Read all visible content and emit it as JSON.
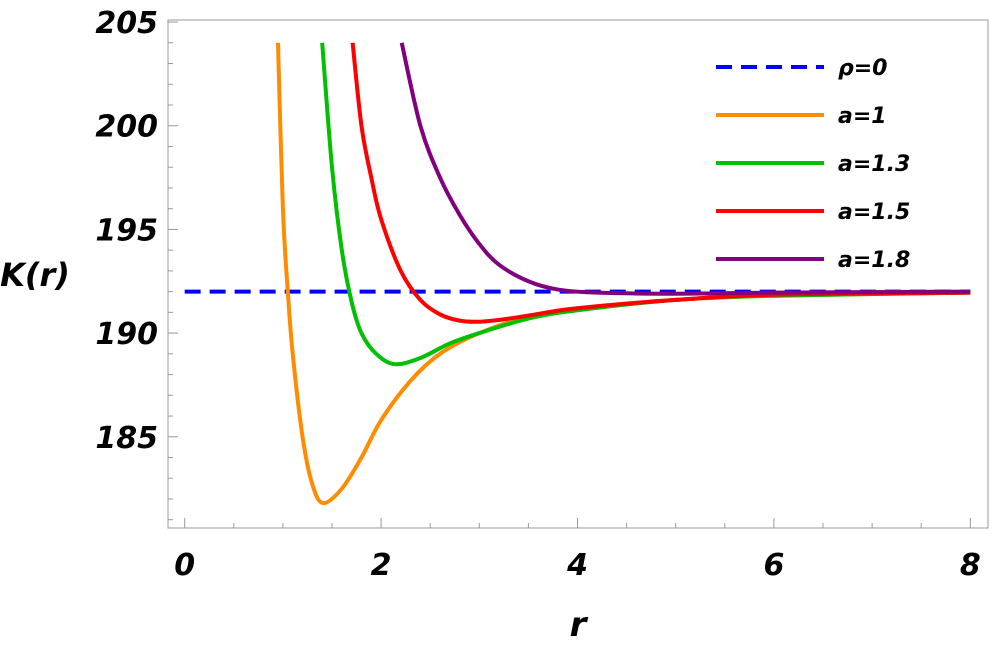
{
  "chart_data": {
    "type": "line",
    "title": "",
    "xlabel": "r",
    "ylabel": "K(r)",
    "xlim": [
      -0.17,
      8.18
    ],
    "ylim": [
      180.6,
      205.1
    ],
    "xticks": [
      0,
      2,
      4,
      6,
      8
    ],
    "yticks": [
      185,
      190,
      195,
      200,
      205
    ],
    "grid": false,
    "legend_position": "top-right",
    "series": [
      {
        "name": "ρ=0",
        "color": "#0000ff",
        "dashed": true,
        "points": [
          [
            0,
            192
          ],
          [
            8,
            192
          ]
        ]
      },
      {
        "name": "a=1",
        "color": "#ff8c00",
        "dashed": false,
        "points": [
          [
            0.95,
            204
          ],
          [
            1.0,
            196
          ],
          [
            1.05,
            192
          ],
          [
            1.1,
            189
          ],
          [
            1.2,
            185
          ],
          [
            1.3,
            182.7
          ],
          [
            1.41,
            181.8
          ],
          [
            1.6,
            182.5
          ],
          [
            1.8,
            184
          ],
          [
            2.0,
            185.8
          ],
          [
            2.3,
            187.7
          ],
          [
            2.6,
            189
          ],
          [
            3.0,
            190
          ],
          [
            3.5,
            190.8
          ],
          [
            4,
            191.2
          ],
          [
            5,
            191.6
          ],
          [
            6,
            191.8
          ],
          [
            8,
            191.95
          ]
        ]
      },
      {
        "name": "a=1.3",
        "color": "#00c000",
        "dashed": false,
        "points": [
          [
            1.4,
            204
          ],
          [
            1.5,
            198
          ],
          [
            1.6,
            194
          ],
          [
            1.7,
            191.5
          ],
          [
            1.8,
            190
          ],
          [
            1.95,
            189
          ],
          [
            2.14,
            188.5
          ],
          [
            2.4,
            188.8
          ],
          [
            2.7,
            189.5
          ],
          [
            3,
            190
          ],
          [
            3.5,
            190.7
          ],
          [
            4,
            191.1
          ],
          [
            5,
            191.6
          ],
          [
            6,
            191.8
          ],
          [
            8,
            191.95
          ]
        ]
      },
      {
        "name": "a=1.5",
        "color": "#ff0000",
        "dashed": false,
        "points": [
          [
            1.71,
            204
          ],
          [
            1.8,
            200
          ],
          [
            1.9,
            197.5
          ],
          [
            2.0,
            195.5
          ],
          [
            2.2,
            193
          ],
          [
            2.4,
            191.6
          ],
          [
            2.6,
            190.9
          ],
          [
            2.8,
            190.6
          ],
          [
            3.0,
            190.55
          ],
          [
            3.3,
            190.7
          ],
          [
            3.7,
            191
          ],
          [
            4,
            191.2
          ],
          [
            5,
            191.6
          ],
          [
            6,
            191.85
          ],
          [
            8,
            191.95
          ]
        ]
      },
      {
        "name": "a=1.8",
        "color": "#800080",
        "dashed": false,
        "points": [
          [
            2.21,
            204
          ],
          [
            2.4,
            200
          ],
          [
            2.6,
            197.5
          ],
          [
            2.8,
            195.7
          ],
          [
            3.0,
            194.3
          ],
          [
            3.2,
            193.3
          ],
          [
            3.5,
            192.5
          ],
          [
            3.8,
            192.1
          ],
          [
            4.2,
            191.95
          ],
          [
            5,
            191.9
          ],
          [
            6,
            191.95
          ],
          [
            8,
            192
          ]
        ]
      }
    ]
  }
}
